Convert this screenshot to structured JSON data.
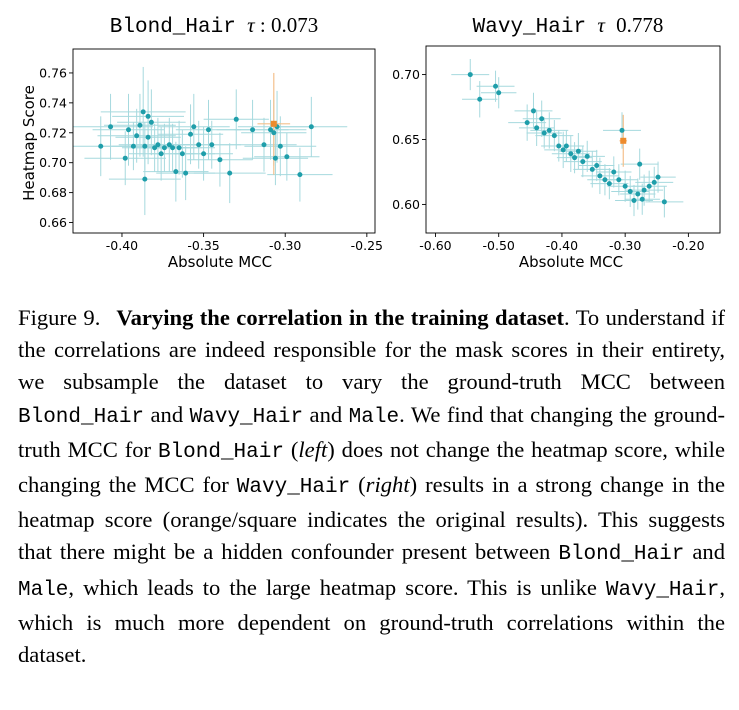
{
  "chart_data": [
    {
      "type": "scatter",
      "title_attr": "Blond_Hair",
      "title_tau": "τ",
      "title_value": ": 0.073",
      "xlabel": "Absolute MCC",
      "ylabel": "Heatmap Score",
      "xlim": [
        -0.43,
        -0.245
      ],
      "ylim": [
        0.653,
        0.776
      ],
      "xticks": [
        -0.4,
        -0.35,
        -0.3,
        -0.25
      ],
      "xtick_labels": [
        "-0.40",
        "-0.35",
        "-0.30",
        "-0.25"
      ],
      "yticks": [
        0.66,
        0.68,
        0.7,
        0.72,
        0.74,
        0.76
      ],
      "ytick_labels": [
        "0.66",
        "0.68",
        "0.70",
        "0.72",
        "0.74",
        "0.76"
      ],
      "colors": {
        "points": "#1f9eaa",
        "errorbars": "#a6d9de",
        "original": "#ed8b2d"
      },
      "points": [
        {
          "x": -0.413,
          "y": 0.711,
          "xerr": 0.02,
          "yerr": 0.02
        },
        {
          "x": -0.407,
          "y": 0.724,
          "xerr": 0.026,
          "yerr": 0.022
        },
        {
          "x": -0.398,
          "y": 0.703,
          "xerr": 0.025,
          "yerr": 0.018
        },
        {
          "x": -0.396,
          "y": 0.722,
          "xerr": 0.022,
          "yerr": 0.024
        },
        {
          "x": -0.393,
          "y": 0.711,
          "xerr": 0.02,
          "yerr": 0.016
        },
        {
          "x": -0.391,
          "y": 0.718,
          "xerr": 0.024,
          "yerr": 0.018
        },
        {
          "x": -0.389,
          "y": 0.725,
          "xerr": 0.022,
          "yerr": 0.021
        },
        {
          "x": -0.387,
          "y": 0.734,
          "xerr": 0.026,
          "yerr": 0.03
        },
        {
          "x": -0.386,
          "y": 0.711,
          "xerr": 0.02,
          "yerr": 0.016
        },
        {
          "x": -0.386,
          "y": 0.689,
          "xerr": 0.022,
          "yerr": 0.024
        },
        {
          "x": -0.384,
          "y": 0.731,
          "xerr": 0.022,
          "yerr": 0.024
        },
        {
          "x": -0.384,
          "y": 0.717,
          "xerr": 0.02,
          "yerr": 0.018
        },
        {
          "x": -0.382,
          "y": 0.727,
          "xerr": 0.021,
          "yerr": 0.022
        },
        {
          "x": -0.38,
          "y": 0.71,
          "xerr": 0.02,
          "yerr": 0.016
        },
        {
          "x": -0.378,
          "y": 0.712,
          "xerr": 0.024,
          "yerr": 0.018
        },
        {
          "x": -0.376,
          "y": 0.706,
          "xerr": 0.02,
          "yerr": 0.018
        },
        {
          "x": -0.374,
          "y": 0.71,
          "xerr": 0.018,
          "yerr": 0.016
        },
        {
          "x": -0.371,
          "y": 0.712,
          "xerr": 0.02,
          "yerr": 0.018
        },
        {
          "x": -0.369,
          "y": 0.71,
          "xerr": 0.018,
          "yerr": 0.016
        },
        {
          "x": -0.367,
          "y": 0.694,
          "xerr": 0.02,
          "yerr": 0.02
        },
        {
          "x": -0.365,
          "y": 0.71,
          "xerr": 0.022,
          "yerr": 0.018
        },
        {
          "x": -0.363,
          "y": 0.706,
          "xerr": 0.02,
          "yerr": 0.016
        },
        {
          "x": -0.361,
          "y": 0.693,
          "xerr": 0.018,
          "yerr": 0.018
        },
        {
          "x": -0.358,
          "y": 0.719,
          "xerr": 0.02,
          "yerr": 0.02
        },
        {
          "x": -0.356,
          "y": 0.724,
          "xerr": 0.022,
          "yerr": 0.022
        },
        {
          "x": -0.353,
          "y": 0.712,
          "xerr": 0.02,
          "yerr": 0.016
        },
        {
          "x": -0.35,
          "y": 0.706,
          "xerr": 0.018,
          "yerr": 0.018
        },
        {
          "x": -0.347,
          "y": 0.722,
          "xerr": 0.02,
          "yerr": 0.02
        },
        {
          "x": -0.345,
          "y": 0.712,
          "xerr": 0.018,
          "yerr": 0.016
        },
        {
          "x": -0.34,
          "y": 0.702,
          "xerr": 0.02,
          "yerr": 0.018
        },
        {
          "x": -0.334,
          "y": 0.693,
          "xerr": 0.022,
          "yerr": 0.02
        },
        {
          "x": -0.33,
          "y": 0.729,
          "xerr": 0.02,
          "yerr": 0.02
        },
        {
          "x": -0.32,
          "y": 0.722,
          "xerr": 0.022,
          "yerr": 0.02
        },
        {
          "x": -0.313,
          "y": 0.712,
          "xerr": 0.02,
          "yerr": 0.018
        },
        {
          "x": -0.309,
          "y": 0.722,
          "xerr": 0.022,
          "yerr": 0.02
        },
        {
          "x": -0.307,
          "y": 0.72,
          "xerr": 0.02,
          "yerr": 0.022
        },
        {
          "x": -0.306,
          "y": 0.703,
          "xerr": 0.02,
          "yerr": 0.018
        },
        {
          "x": -0.305,
          "y": 0.724,
          "xerr": 0.024,
          "yerr": 0.024
        },
        {
          "x": -0.303,
          "y": 0.711,
          "xerr": 0.022,
          "yerr": 0.02
        },
        {
          "x": -0.299,
          "y": 0.704,
          "xerr": 0.02,
          "yerr": 0.016
        },
        {
          "x": -0.291,
          "y": 0.692,
          "xerr": 0.02,
          "yerr": 0.018
        },
        {
          "x": -0.284,
          "y": 0.724,
          "xerr": 0.022,
          "yerr": 0.02
        }
      ],
      "original": {
        "x": -0.307,
        "y": 0.726,
        "xerr": 0.01,
        "yerr": 0.034
      }
    },
    {
      "type": "scatter",
      "title_attr": "Wavy_Hair",
      "title_tau": "τ",
      "title_value": "0.778",
      "xlabel": "Absolute MCC",
      "ylabel": "",
      "xlim": [
        -0.615,
        -0.15
      ],
      "ylim": [
        0.578,
        0.722
      ],
      "xticks": [
        -0.6,
        -0.5,
        -0.4,
        -0.3,
        -0.2
      ],
      "xtick_labels": [
        "-0.60",
        "-0.50",
        "-0.40",
        "-0.30",
        "-0.20"
      ],
      "yticks": [
        0.6,
        0.65,
        0.7
      ],
      "ytick_labels": [
        "0.60",
        "0.65",
        "0.70"
      ],
      "colors": {
        "points": "#1f9eaa",
        "errorbars": "#a6d9de",
        "original": "#ed8b2d"
      },
      "points": [
        {
          "x": -0.545,
          "y": 0.7,
          "xerr": 0.03,
          "yerr": 0.012
        },
        {
          "x": -0.53,
          "y": 0.681,
          "xerr": 0.028,
          "yerr": 0.014
        },
        {
          "x": -0.505,
          "y": 0.691,
          "xerr": 0.03,
          "yerr": 0.012
        },
        {
          "x": -0.5,
          "y": 0.686,
          "xerr": 0.028,
          "yerr": 0.012
        },
        {
          "x": -0.455,
          "y": 0.663,
          "xerr": 0.03,
          "yerr": 0.014
        },
        {
          "x": -0.445,
          "y": 0.672,
          "xerr": 0.03,
          "yerr": 0.014
        },
        {
          "x": -0.44,
          "y": 0.659,
          "xerr": 0.028,
          "yerr": 0.014
        },
        {
          "x": -0.432,
          "y": 0.666,
          "xerr": 0.03,
          "yerr": 0.014
        },
        {
          "x": -0.428,
          "y": 0.655,
          "xerr": 0.028,
          "yerr": 0.012
        },
        {
          "x": -0.42,
          "y": 0.657,
          "xerr": 0.03,
          "yerr": 0.014
        },
        {
          "x": -0.412,
          "y": 0.653,
          "xerr": 0.03,
          "yerr": 0.012
        },
        {
          "x": -0.405,
          "y": 0.645,
          "xerr": 0.028,
          "yerr": 0.012
        },
        {
          "x": -0.398,
          "y": 0.642,
          "xerr": 0.03,
          "yerr": 0.014
        },
        {
          "x": -0.393,
          "y": 0.645,
          "xerr": 0.028,
          "yerr": 0.012
        },
        {
          "x": -0.386,
          "y": 0.639,
          "xerr": 0.03,
          "yerr": 0.014
        },
        {
          "x": -0.38,
          "y": 0.636,
          "xerr": 0.028,
          "yerr": 0.012
        },
        {
          "x": -0.374,
          "y": 0.641,
          "xerr": 0.03,
          "yerr": 0.014
        },
        {
          "x": -0.367,
          "y": 0.633,
          "xerr": 0.03,
          "yerr": 0.012
        },
        {
          "x": -0.36,
          "y": 0.637,
          "xerr": 0.028,
          "yerr": 0.012
        },
        {
          "x": -0.352,
          "y": 0.627,
          "xerr": 0.03,
          "yerr": 0.014
        },
        {
          "x": -0.345,
          "y": 0.63,
          "xerr": 0.028,
          "yerr": 0.012
        },
        {
          "x": -0.34,
          "y": 0.622,
          "xerr": 0.03,
          "yerr": 0.014
        },
        {
          "x": -0.332,
          "y": 0.619,
          "xerr": 0.028,
          "yerr": 0.012
        },
        {
          "x": -0.325,
          "y": 0.616,
          "xerr": 0.03,
          "yerr": 0.012
        },
        {
          "x": -0.318,
          "y": 0.625,
          "xerr": 0.028,
          "yerr": 0.012
        },
        {
          "x": -0.31,
          "y": 0.619,
          "xerr": 0.03,
          "yerr": 0.012
        },
        {
          "x": -0.3,
          "y": 0.614,
          "xerr": 0.028,
          "yerr": 0.012
        },
        {
          "x": -0.292,
          "y": 0.61,
          "xerr": 0.03,
          "yerr": 0.012
        },
        {
          "x": -0.286,
          "y": 0.603,
          "xerr": 0.03,
          "yerr": 0.012
        },
        {
          "x": -0.28,
          "y": 0.608,
          "xerr": 0.028,
          "yerr": 0.012
        },
        {
          "x": -0.277,
          "y": 0.631,
          "xerr": 0.03,
          "yerr": 0.012
        },
        {
          "x": -0.273,
          "y": 0.604,
          "xerr": 0.028,
          "yerr": 0.012
        },
        {
          "x": -0.27,
          "y": 0.611,
          "xerr": 0.03,
          "yerr": 0.012
        },
        {
          "x": -0.262,
          "y": 0.614,
          "xerr": 0.028,
          "yerr": 0.012
        },
        {
          "x": -0.254,
          "y": 0.617,
          "xerr": 0.03,
          "yerr": 0.012
        },
        {
          "x": -0.248,
          "y": 0.621,
          "xerr": 0.028,
          "yerr": 0.012
        },
        {
          "x": -0.238,
          "y": 0.602,
          "xerr": 0.03,
          "yerr": 0.012
        },
        {
          "x": -0.305,
          "y": 0.657,
          "xerr": 0.03,
          "yerr": 0.014
        }
      ],
      "original": {
        "x": -0.303,
        "y": 0.649,
        "xerr": 0.006,
        "yerr": 0.02
      }
    }
  ],
  "caption": {
    "label": "Figure 9.",
    "title": "Varying the correlation in the training dataset",
    "t1": ". To understand if the correlations are indeed responsible for the mask scores in their entirety, we subsample the dataset to vary the ground-truth MCC between ",
    "blond": "Blond_Hair",
    "t2": " and ",
    "wavy": "Wavy_Hair",
    "t3": " and ",
    "male": "Male",
    "t4": ". We find that changing the ground-truth MCC for ",
    "t5": " (",
    "left": "left",
    "t6": ") does not change the heatmap score, while changing the MCC for ",
    "t7": " (",
    "right": "right",
    "t8": ") results in a strong change in the heatmap score (orange/square indicates the original results). This suggests that there might be a hidden confounder present between ",
    "t9": " and ",
    "t10": ", which leads to the large heatmap score. This is unlike ",
    "t11": ", which is much more dependent on ground-truth correlations within the dataset."
  }
}
